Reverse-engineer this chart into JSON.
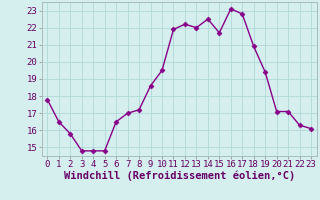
{
  "x": [
    0,
    1,
    2,
    3,
    4,
    5,
    6,
    7,
    8,
    9,
    10,
    11,
    12,
    13,
    14,
    15,
    16,
    17,
    18,
    19,
    20,
    21,
    22,
    23
  ],
  "y": [
    17.8,
    16.5,
    15.8,
    14.8,
    14.8,
    14.8,
    16.5,
    17.0,
    17.2,
    18.6,
    19.5,
    21.9,
    22.2,
    22.0,
    22.5,
    21.7,
    23.1,
    22.8,
    20.9,
    19.4,
    17.1,
    17.1,
    16.3,
    16.1
  ],
  "line_color": "#880088",
  "marker": "D",
  "markersize": 2.5,
  "linewidth": 1.0,
  "bg_color": "#d5eeee",
  "grid_color": "#b0d8d8",
  "xlabel": "Windchill (Refroidissement éolien,°C)",
  "xlabel_fontsize": 7.5,
  "ytick_labels": [
    "15",
    "16",
    "17",
    "18",
    "19",
    "20",
    "21",
    "22",
    "23"
  ],
  "ytick_values": [
    15,
    16,
    17,
    18,
    19,
    20,
    21,
    22,
    23
  ],
  "xtick_labels": [
    "0",
    "1",
    "2",
    "3",
    "4",
    "5",
    "6",
    "7",
    "8",
    "9",
    "10",
    "11",
    "12",
    "13",
    "14",
    "15",
    "16",
    "17",
    "18",
    "19",
    "20",
    "21",
    "22",
    "23"
  ],
  "ylim": [
    14.5,
    23.5
  ],
  "xlim": [
    -0.5,
    23.5
  ],
  "tick_fontsize": 6.5
}
